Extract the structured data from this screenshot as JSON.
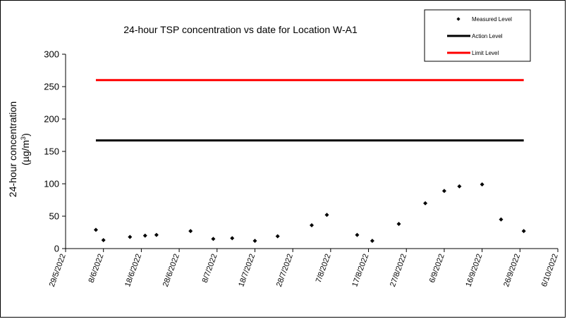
{
  "chart_data": {
    "type": "scatter",
    "title": "24-hour TSP concentration vs date for Location W-A1",
    "ylabel_line1": "24-hour concentration",
    "ylabel_line2_prefix": "(µg/m",
    "ylabel_line2_sup": "3",
    "ylabel_line2_suffix": ")",
    "ylim": [
      0,
      300
    ],
    "yticks": [
      0,
      50,
      100,
      150,
      200,
      250,
      300
    ],
    "xlim": [
      "2022-05-29",
      "2022-10-06"
    ],
    "xticks": [
      {
        "date": "2022-05-29",
        "label": "29/5/2022"
      },
      {
        "date": "2022-06-08",
        "label": "8/6/2022"
      },
      {
        "date": "2022-06-18",
        "label": "18/6/2022"
      },
      {
        "date": "2022-06-28",
        "label": "28/6/2022"
      },
      {
        "date": "2022-07-08",
        "label": "8/7/2022"
      },
      {
        "date": "2022-07-18",
        "label": "18/7/2022"
      },
      {
        "date": "2022-07-28",
        "label": "28/7/2022"
      },
      {
        "date": "2022-08-07",
        "label": "7/8/2022"
      },
      {
        "date": "2022-08-17",
        "label": "17/8/2022"
      },
      {
        "date": "2022-08-27",
        "label": "27/8/2022"
      },
      {
        "date": "2022-09-06",
        "label": "6/9/2022"
      },
      {
        "date": "2022-09-16",
        "label": "16/9/2022"
      },
      {
        "date": "2022-09-26",
        "label": "26/9/2022"
      },
      {
        "date": "2022-10-06",
        "label": "6/10/2022"
      }
    ],
    "series": [
      {
        "name": "Measured Level",
        "style": "marker",
        "color": "#000000",
        "points": [
          {
            "x": "2022-06-06",
            "y": 29
          },
          {
            "x": "2022-06-08",
            "y": 13
          },
          {
            "x": "2022-06-15",
            "y": 18
          },
          {
            "x": "2022-06-19",
            "y": 20
          },
          {
            "x": "2022-06-22",
            "y": 21
          },
          {
            "x": "2022-07-01",
            "y": 27
          },
          {
            "x": "2022-07-07",
            "y": 15
          },
          {
            "x": "2022-07-12",
            "y": 16
          },
          {
            "x": "2022-07-18",
            "y": 12
          },
          {
            "x": "2022-07-24",
            "y": 19
          },
          {
            "x": "2022-08-02",
            "y": 36
          },
          {
            "x": "2022-08-06",
            "y": 52
          },
          {
            "x": "2022-08-14",
            "y": 21
          },
          {
            "x": "2022-08-18",
            "y": 12
          },
          {
            "x": "2022-08-25",
            "y": 38
          },
          {
            "x": "2022-09-01",
            "y": 70
          },
          {
            "x": "2022-09-06",
            "y": 89
          },
          {
            "x": "2022-09-10",
            "y": 96
          },
          {
            "x": "2022-09-16",
            "y": 99
          },
          {
            "x": "2022-09-21",
            "y": 45
          },
          {
            "x": "2022-09-27",
            "y": 27
          }
        ]
      },
      {
        "name": "Action Level",
        "style": "line",
        "color": "#000000",
        "x_range": [
          "2022-06-06",
          "2022-09-27"
        ],
        "y": 167
      },
      {
        "name": "Limit Level",
        "style": "line",
        "color": "#ff0000",
        "x_range": [
          "2022-06-06",
          "2022-09-27"
        ],
        "y": 260
      }
    ],
    "legend_position": "top-right",
    "grid": false
  }
}
